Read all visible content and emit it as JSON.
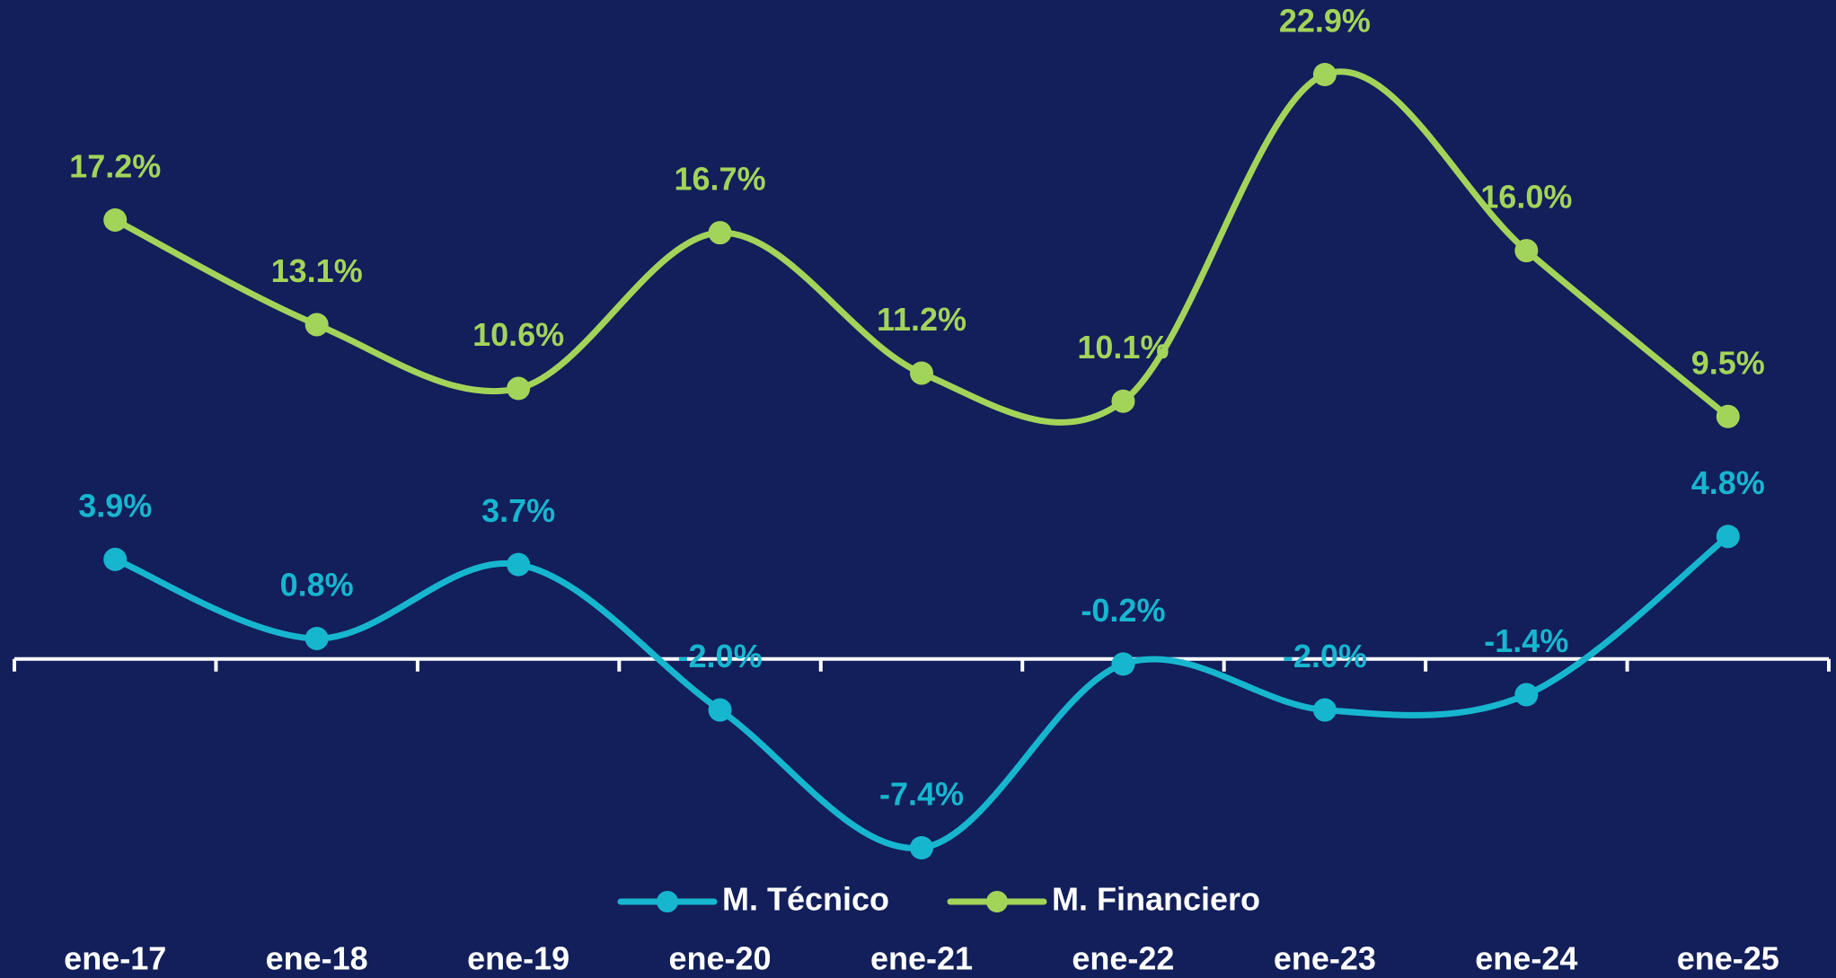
{
  "chart_data": {
    "type": "line",
    "categories": [
      "ene-17",
      "ene-18",
      "ene-19",
      "ene-20",
      "ene-21",
      "ene-22",
      "ene-23",
      "ene-24",
      "ene-25"
    ],
    "series": [
      {
        "name": "M. Técnico",
        "color": "#17b6cf",
        "values": [
          3.9,
          0.8,
          3.7,
          -2.0,
          -7.4,
          -0.2,
          -2.0,
          -1.4,
          4.8
        ],
        "value_labels": [
          "3.9%",
          "0.8%",
          "3.7%",
          "-2.0%",
          "-7.4%",
          "-0.2%",
          "-2.0%",
          "-1.4%",
          "4.8%"
        ]
      },
      {
        "name": "M. Financiero",
        "color": "#a3d45a",
        "values": [
          17.2,
          13.1,
          10.6,
          16.7,
          11.2,
          10.1,
          22.9,
          16.0,
          9.5
        ],
        "value_labels": [
          "17.2%",
          "13.1%",
          "10.6%",
          "16.7%",
          "11.2%",
          "10.1%",
          "22.9%",
          "16.0%",
          "9.5%"
        ]
      }
    ],
    "smooth": true,
    "markers": true,
    "legend": "bottom"
  }
}
